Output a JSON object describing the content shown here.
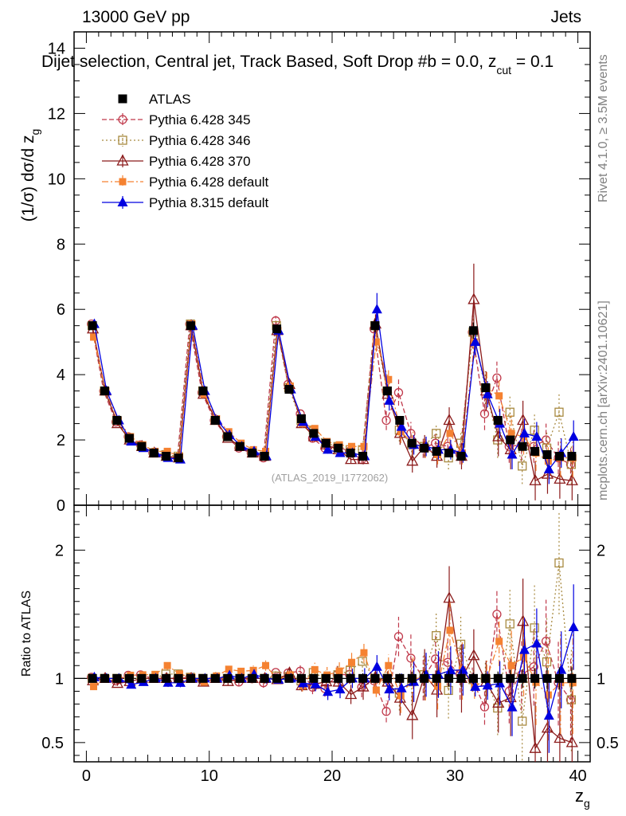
{
  "header": {
    "beam": "13000 GeV pp",
    "process": "Jets",
    "plot_title": "Dijet selection, Central jet, Track Based, Soft Drop #b = 0.0, z",
    "title_sub": "cut",
    "title_tail": " = 0.1"
  },
  "side_labels": {
    "rivet": "Rivet 4.1.0, ≥ 3.5M events",
    "mcplots": "mcplots.cern.ch [arXiv:2401.10621]"
  },
  "watermark": "(ATLAS_2019_I1772062)",
  "colors": {
    "ATLAS": "#000000",
    "py345": "#c0394b",
    "py346": "#a88a40",
    "py370": "#8b1a1a",
    "pydef": "#f58231",
    "py8": "#0000e0"
  },
  "chart_data": {
    "type": "line",
    "title": "Dijet selection, Central jet, Track Based, Soft Drop #b = 0.0, z_cut = 0.1",
    "xlabel": "z",
    "xlabel_sub": "g",
    "ylabel": "(1/σ) dσ/d z",
    "ylabel_sub": "g",
    "ratio_ylabel": "Ratio to ATLAS",
    "xlim": [
      -1,
      41
    ],
    "ylim": [
      0,
      14.5
    ],
    "ratio_ylim": [
      0.35,
      2.35
    ],
    "xticks": [
      "0",
      "10",
      "20",
      "30",
      "40"
    ],
    "yticks": [
      "0",
      "2",
      "4",
      "6",
      "8",
      "10",
      "12",
      "14"
    ],
    "ratio_yticks": [
      "0.5",
      "1",
      "2"
    ],
    "x": [
      0.5,
      1.5,
      2.5,
      3.5,
      4.5,
      5.5,
      6.5,
      7.5,
      8.5,
      9.5,
      10.5,
      11.5,
      12.5,
      13.5,
      14.5,
      15.5,
      16.5,
      17.5,
      18.5,
      19.5,
      20.5,
      21.5,
      22.5,
      23.5,
      24.5,
      25.5,
      26.5,
      27.5,
      28.5,
      29.5,
      30.5,
      31.5,
      32.5,
      33.5,
      34.5,
      35.5,
      36.5,
      37.5,
      38.5,
      39.5
    ],
    "series": [
      {
        "key": "ATLAS",
        "name": "ATLAS",
        "marker": "sq-filled",
        "dash": "",
        "values": [
          5.5,
          3.5,
          2.6,
          2.05,
          1.8,
          1.6,
          1.5,
          1.45,
          5.5,
          3.5,
          2.6,
          2.1,
          1.8,
          1.6,
          1.5,
          5.4,
          3.55,
          2.65,
          2.2,
          1.9,
          1.75,
          1.6,
          1.5,
          5.5,
          3.5,
          2.6,
          1.9,
          1.75,
          1.65,
          1.6,
          1.5,
          5.35,
          3.6,
          2.6,
          2.0,
          1.8,
          1.65,
          1.55,
          1.5,
          1.5
        ],
        "errors": [
          0.1,
          0.06,
          0.05,
          0.05,
          0.04,
          0.04,
          0.04,
          0.04,
          0.1,
          0.07,
          0.05,
          0.05,
          0.05,
          0.05,
          0.05,
          0.12,
          0.08,
          0.07,
          0.06,
          0.06,
          0.06,
          0.06,
          0.06,
          0.2,
          0.12,
          0.1,
          0.1,
          0.1,
          0.1,
          0.1,
          0.1,
          0.25,
          0.15,
          0.14,
          0.13,
          0.13,
          0.13,
          0.13,
          0.13,
          0.13
        ]
      },
      {
        "key": "py345",
        "name": "Pythia 6.428 345",
        "marker": "circ-open",
        "dash": "6,3",
        "values": [
          5.55,
          3.5,
          2.55,
          2.1,
          1.85,
          1.6,
          1.5,
          1.45,
          5.55,
          3.45,
          2.6,
          2.1,
          1.75,
          1.6,
          1.45,
          5.65,
          3.7,
          2.8,
          2.05,
          1.75,
          1.8,
          1.65,
          1.4,
          5.4,
          2.6,
          3.45,
          2.2,
          1.75,
          1.9,
          1.8,
          1.55,
          5.3,
          2.8,
          3.9,
          1.8,
          1.85,
          1.8,
          2.0,
          1.45,
          1.25
        ],
        "errors": [
          0.08,
          0.05,
          0.05,
          0.05,
          0.05,
          0.05,
          0.05,
          0.05,
          0.1,
          0.08,
          0.06,
          0.06,
          0.06,
          0.06,
          0.06,
          0.15,
          0.12,
          0.12,
          0.12,
          0.12,
          0.12,
          0.12,
          0.12,
          0.3,
          0.3,
          0.4,
          0.35,
          0.3,
          0.3,
          0.3,
          0.3,
          0.5,
          0.5,
          0.5,
          0.5,
          0.5,
          0.5,
          0.5,
          0.5,
          0.5
        ]
      },
      {
        "key": "py346",
        "name": "Pythia 6.428 346",
        "marker": "sq-open",
        "dash": "2,3",
        "values": [
          5.5,
          3.5,
          2.6,
          2.05,
          1.8,
          1.6,
          1.55,
          1.5,
          5.55,
          3.5,
          2.6,
          2.1,
          1.8,
          1.6,
          1.5,
          5.5,
          3.6,
          2.6,
          2.3,
          1.9,
          1.8,
          1.7,
          1.7,
          5.5,
          3.5,
          2.3,
          1.85,
          1.8,
          2.2,
          1.45,
          1.9,
          5.3,
          3.6,
          2.0,
          2.85,
          1.2,
          2.3,
          1.75,
          2.85,
          1.25
        ],
        "errors": [
          0.08,
          0.05,
          0.05,
          0.05,
          0.05,
          0.05,
          0.05,
          0.05,
          0.1,
          0.08,
          0.06,
          0.06,
          0.06,
          0.06,
          0.06,
          0.15,
          0.12,
          0.12,
          0.12,
          0.12,
          0.12,
          0.12,
          0.12,
          0.3,
          0.3,
          0.35,
          0.35,
          0.3,
          0.3,
          0.35,
          0.35,
          0.5,
          0.5,
          0.55,
          0.55,
          0.55,
          0.55,
          0.55,
          0.6,
          0.6
        ]
      },
      {
        "key": "py370",
        "name": "Pythia 6.428 370",
        "marker": "tri-open",
        "dash": "",
        "values": [
          5.4,
          3.5,
          2.5,
          2.0,
          1.8,
          1.6,
          1.5,
          1.45,
          5.5,
          3.4,
          2.6,
          2.05,
          1.8,
          1.6,
          1.5,
          5.35,
          3.7,
          2.5,
          2.1,
          1.85,
          1.7,
          1.4,
          1.4,
          5.55,
          3.4,
          2.2,
          1.35,
          1.8,
          1.5,
          2.6,
          1.5,
          6.3,
          3.5,
          2.1,
          1.7,
          2.6,
          0.75,
          0.95,
          0.8,
          0.75
        ],
        "errors": [
          0.08,
          0.05,
          0.05,
          0.05,
          0.05,
          0.05,
          0.05,
          0.05,
          0.1,
          0.08,
          0.06,
          0.06,
          0.06,
          0.06,
          0.06,
          0.15,
          0.12,
          0.12,
          0.12,
          0.12,
          0.12,
          0.12,
          0.15,
          0.3,
          0.3,
          0.35,
          0.35,
          0.35,
          0.35,
          0.4,
          0.4,
          1.1,
          0.6,
          0.6,
          0.6,
          0.6,
          0.6,
          0.6,
          0.6,
          0.6
        ]
      },
      {
        "key": "pydef",
        "name": "Pythia 6.428 default",
        "marker": "sq-filled-small",
        "dash": "8,3,2,3",
        "values": [
          5.15,
          3.5,
          2.6,
          2.1,
          1.85,
          1.65,
          1.65,
          1.5,
          5.55,
          3.4,
          2.65,
          2.25,
          1.9,
          1.7,
          1.65,
          5.35,
          3.65,
          2.5,
          2.35,
          1.95,
          1.85,
          1.8,
          1.8,
          5.0,
          3.85,
          2.25,
          1.9,
          1.75,
          1.55,
          2.2,
          1.6,
          5.0,
          3.6,
          3.35,
          2.2,
          2.1,
          1.6,
          1.35,
          1.45,
          1.45
        ],
        "errors": [
          0.08,
          0.05,
          0.05,
          0.05,
          0.05,
          0.05,
          0.05,
          0.05,
          0.1,
          0.08,
          0.06,
          0.06,
          0.06,
          0.06,
          0.06,
          0.15,
          0.12,
          0.12,
          0.12,
          0.12,
          0.12,
          0.12,
          0.12,
          0.3,
          0.3,
          0.35,
          0.35,
          0.3,
          0.3,
          0.35,
          0.35,
          0.5,
          0.5,
          0.5,
          0.55,
          0.55,
          0.55,
          0.55,
          0.6,
          0.6
        ]
      },
      {
        "key": "py8",
        "name": "Pythia 8.315 default",
        "marker": "tri-filled",
        "dash": "",
        "values": [
          5.55,
          3.5,
          2.6,
          1.95,
          1.75,
          1.6,
          1.45,
          1.4,
          5.5,
          3.5,
          2.6,
          2.15,
          1.8,
          1.65,
          1.5,
          5.35,
          3.55,
          2.55,
          2.1,
          1.7,
          1.6,
          1.6,
          1.5,
          6.0,
          3.2,
          2.4,
          1.85,
          1.8,
          1.7,
          1.7,
          1.6,
          5.0,
          3.4,
          2.5,
          1.55,
          2.2,
          2.1,
          1.1,
          1.6,
          2.1
        ],
        "errors": [
          0.08,
          0.05,
          0.05,
          0.05,
          0.05,
          0.05,
          0.05,
          0.05,
          0.1,
          0.08,
          0.06,
          0.06,
          0.06,
          0.06,
          0.06,
          0.15,
          0.12,
          0.12,
          0.12,
          0.12,
          0.12,
          0.12,
          0.12,
          0.5,
          0.3,
          0.3,
          0.3,
          0.3,
          0.3,
          0.3,
          0.3,
          0.4,
          0.4,
          0.45,
          0.45,
          0.45,
          0.45,
          0.45,
          0.45,
          0.5
        ]
      }
    ]
  }
}
